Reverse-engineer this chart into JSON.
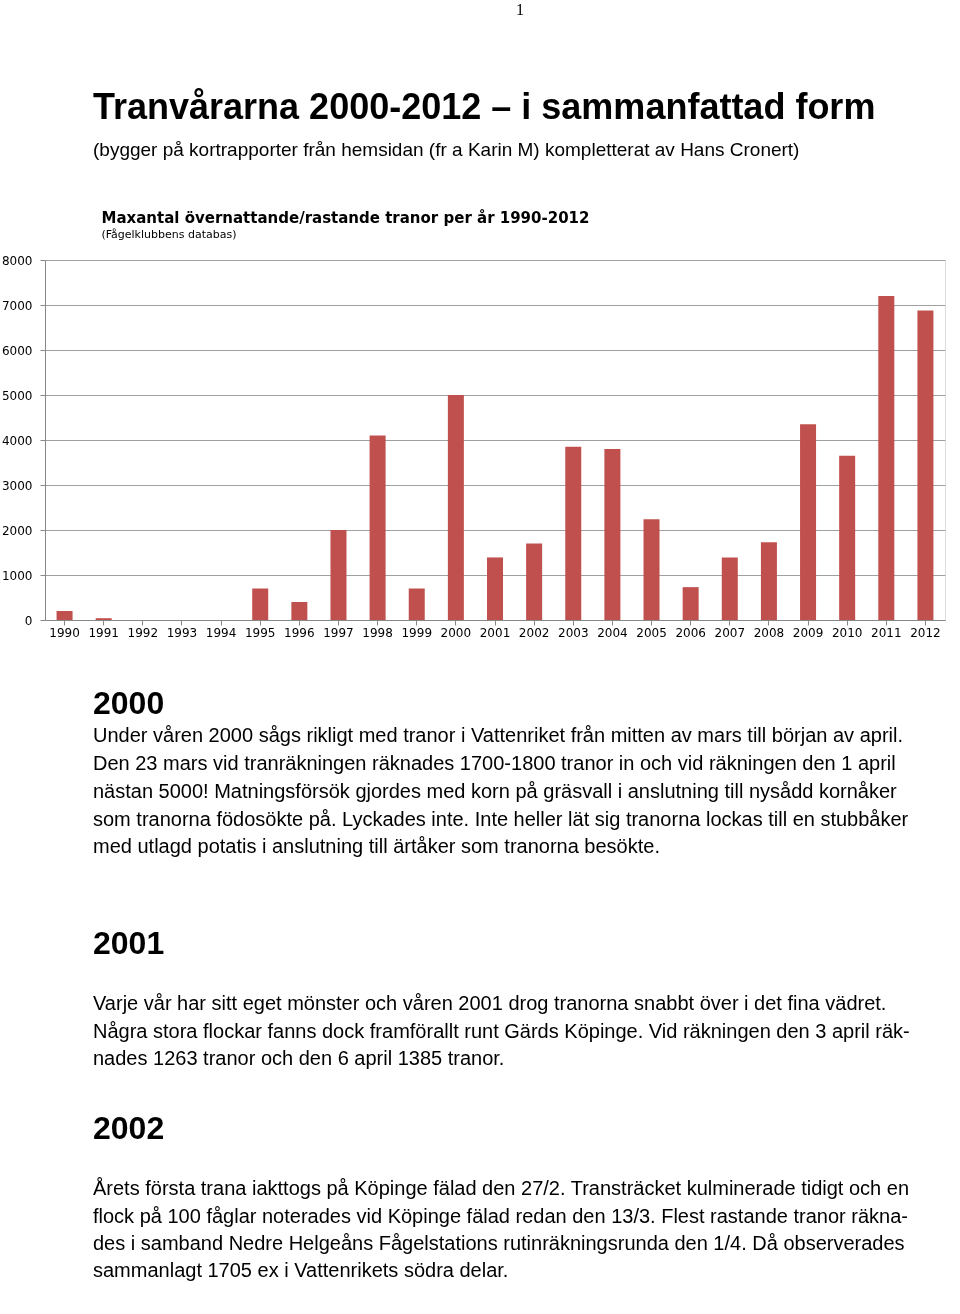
{
  "chart_data": {
    "type": "bar",
    "title": "Maxantal övernattande/rastande tranor per år 1990-2012",
    "subtitle": "(Fågelklubbens databas)",
    "categories": [
      "1990",
      "1991",
      "1992",
      "1993",
      "1994",
      "1995",
      "1996",
      "1997",
      "1998",
      "1999",
      "2000",
      "2001",
      "2002",
      "2003",
      "2004",
      "2005",
      "2006",
      "2007",
      "2008",
      "2009",
      "2010",
      "2011",
      "2012"
    ],
    "values": [
      200,
      40,
      0,
      0,
      0,
      700,
      400,
      2000,
      4100,
      700,
      5000,
      1390,
      1700,
      3850,
      3800,
      2240,
      730,
      1390,
      1730,
      4350,
      3650,
      7200,
      6880
    ],
    "color": "#c0504d",
    "ylim": [
      0,
      8000
    ],
    "yticks": [
      0,
      1000,
      2000,
      3000,
      4000,
      5000,
      6000,
      7000,
      8000
    ],
    "grid": "y",
    "annotations": [
      "1",
      "Tranvårarna 2000-2012 – i sammanfattad form",
      "(bygger på kortrapporter från hemsidan (fr a Karin M) kompletterat av Hans Cronert)",
      "2000",
      "Under våren 2000 sågs rikligt med tranor i Vattenriket från mitten av mars till början av april.",
      "Den 23 mars vid tranräkningen räknades 1700-1800 tranor in och vid räkningen den 1 april",
      "nästan 5000! Matningsförsök gjordes med korn på gräsvall i anslutning till nysådd kornåker",
      "som tranorna födosökte på. Lyckades inte. Inte heller lät sig tranorna lockas till en stubbåker",
      "med utlagd potatis i anslutning till ärtåker som tranorna besökte.",
      "2001",
      "Varje vår har sitt eget mönster och våren 2001 drog tranorna snabbt över i det fina vädret.",
      "Några stora flockar fanns dock framförallt runt Gärds Köpinge. Vid räkningen den 3 april räk-",
      "nades 1263 tranor och den 6 april 1385 tranor.",
      "2002",
      "Årets första trana iakttogs på Köpinge fälad den 27/2. Transträcket kulminerade tidigt och en",
      "flock på 100 fåglar noterades vid Köpinge fälad redan den 13/3. Flest rastande tranor räkna-",
      "des i samband Nedre Helgeåns Fågelstations rutinräkningsrunda den 1/4. Då observerades",
      "sammanlagt 1705 ex i Vattenrikets södra delar."
    ]
  }
}
